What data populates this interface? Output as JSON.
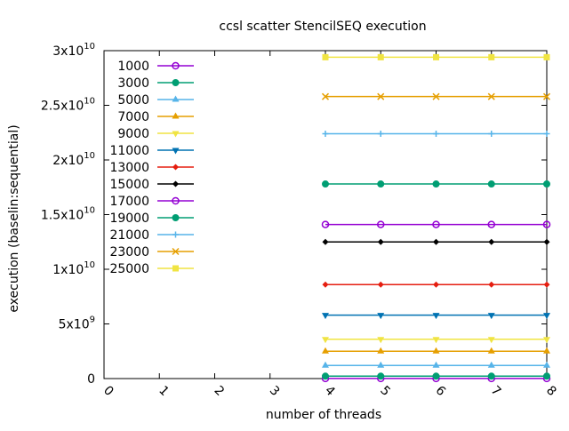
{
  "chart_data": {
    "type": "line",
    "title": "ccsl scatter StencilSEQ execution",
    "xlabel": "number of threads",
    "ylabel": "execution (baselin:sequential)",
    "xlim": [
      0,
      8
    ],
    "ylim": [
      0,
      30000000000
    ],
    "x_ticks": [
      "0",
      "1",
      "2",
      "3",
      "4",
      "5",
      "6",
      "7",
      "8"
    ],
    "y_ticks": [
      {
        "value": 0,
        "base": "0",
        "exp": ""
      },
      {
        "value": 5000000000,
        "base": "5x10",
        "exp": "9"
      },
      {
        "value": 10000000000,
        "base": "1x10",
        "exp": "10"
      },
      {
        "value": 15000000000,
        "base": "1.5x10",
        "exp": "10"
      },
      {
        "value": 20000000000,
        "base": "2x10",
        "exp": "10"
      },
      {
        "value": 25000000000,
        "base": "2.5x10",
        "exp": "10"
      },
      {
        "value": 30000000000,
        "base": "3x10",
        "exp": "10"
      }
    ],
    "grid": false,
    "legend_position": "top-left",
    "x": [
      4,
      5,
      6,
      7,
      8
    ],
    "series": [
      {
        "name": "1000",
        "color": "#9400d3",
        "marker": "circle-open",
        "values": [
          10000000,
          10000000,
          10000000,
          10000000,
          10000000
        ]
      },
      {
        "name": "3000",
        "color": "#009e73",
        "marker": "circle",
        "values": [
          220000000,
          220000000,
          220000000,
          220000000,
          220000000
        ]
      },
      {
        "name": "5000",
        "color": "#56b4e9",
        "marker": "triangle",
        "values": [
          1200000000,
          1200000000,
          1200000000,
          1200000000,
          1200000000
        ]
      },
      {
        "name": "7000",
        "color": "#e69f00",
        "marker": "triangle",
        "values": [
          2500000000,
          2500000000,
          2500000000,
          2500000000,
          2500000000
        ]
      },
      {
        "name": "9000",
        "color": "#f0e442",
        "marker": "triangle-down",
        "values": [
          3600000000,
          3600000000,
          3600000000,
          3600000000,
          3600000000
        ]
      },
      {
        "name": "11000",
        "color": "#0072b2",
        "marker": "triangle-down",
        "values": [
          5800000000,
          5800000000,
          5800000000,
          5800000000,
          5800000000
        ]
      },
      {
        "name": "13000",
        "color": "#e51e10",
        "marker": "diamond",
        "values": [
          8600000000,
          8600000000,
          8600000000,
          8600000000,
          8600000000
        ]
      },
      {
        "name": "15000",
        "color": "#000000",
        "marker": "diamond",
        "values": [
          12500000000,
          12500000000,
          12500000000,
          12500000000,
          12500000000
        ]
      },
      {
        "name": "17000",
        "color": "#9400d3",
        "marker": "circle-open",
        "values": [
          14100000000,
          14100000000,
          14100000000,
          14100000000,
          14100000000
        ]
      },
      {
        "name": "19000",
        "color": "#009e73",
        "marker": "circle",
        "values": [
          17800000000,
          17800000000,
          17800000000,
          17800000000,
          17800000000
        ]
      },
      {
        "name": "21000",
        "color": "#56b4e9",
        "marker": "plus",
        "values": [
          22400000000,
          22400000000,
          22400000000,
          22400000000,
          22400000000
        ]
      },
      {
        "name": "23000",
        "color": "#e69f00",
        "marker": "cross",
        "values": [
          25800000000,
          25800000000,
          25800000000,
          25800000000,
          25800000000
        ]
      },
      {
        "name": "25000",
        "color": "#f0e442",
        "marker": "square",
        "values": [
          29400000000,
          29400000000,
          29400000000,
          29400000000,
          29400000000
        ]
      }
    ]
  }
}
